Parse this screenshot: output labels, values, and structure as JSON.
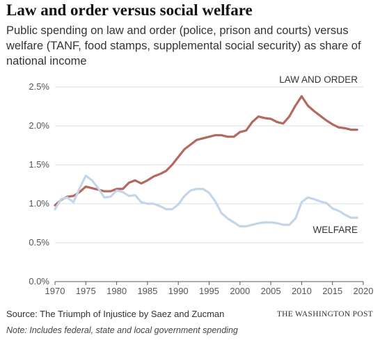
{
  "header": {
    "title": "Law and order versus social welfare",
    "subtitle": "Public spending on law and order (police, prison and courts) versus welfare (TANF, food stamps, supplemental social security) as share of national income"
  },
  "footer": {
    "source": "Source: The Triumph of Injustice by Saez and Zucman",
    "credit": "THE WASHINGTON POST",
    "note": "Note: Includes federal, state and local government spending"
  },
  "colors": {
    "law_and_order": "#b5685e",
    "welfare": "#c3d5e8",
    "grid": "#dddddd",
    "axis": "#555555"
  },
  "chart_data": {
    "type": "line",
    "title": "Law and order versus social welfare",
    "xlabel": "",
    "ylabel": "",
    "xlim": [
      1970,
      2020
    ],
    "ylim": [
      0,
      2.5
    ],
    "x_ticks": [
      1970,
      1975,
      1980,
      1985,
      1990,
      1995,
      2000,
      2005,
      2010,
      2015,
      2020
    ],
    "y_ticks": [
      0,
      0.5,
      1.0,
      1.5,
      2.0,
      2.5
    ],
    "y_tick_labels": [
      "0.0%",
      "0.5%",
      "1.0%",
      "1.5%",
      "2.0%",
      "2.5%"
    ],
    "grid": true,
    "series": [
      {
        "name": "LAW AND ORDER",
        "color": "#b5685e",
        "x": [
          1970,
          1971,
          1972,
          1973,
          1974,
          1975,
          1976,
          1977,
          1978,
          1979,
          1980,
          1981,
          1982,
          1983,
          1984,
          1985,
          1986,
          1987,
          1988,
          1989,
          1990,
          1991,
          1992,
          1993,
          1994,
          1995,
          1996,
          1997,
          1998,
          1999,
          2000,
          2001,
          2002,
          2003,
          2004,
          2005,
          2006,
          2007,
          2008,
          2009,
          2010,
          2011,
          2012,
          2013,
          2014,
          2015,
          2016,
          2017,
          2018,
          2019
        ],
        "values": [
          0.98,
          1.05,
          1.09,
          1.1,
          1.15,
          1.22,
          1.2,
          1.18,
          1.16,
          1.16,
          1.19,
          1.19,
          1.27,
          1.3,
          1.26,
          1.3,
          1.35,
          1.38,
          1.42,
          1.5,
          1.6,
          1.7,
          1.76,
          1.82,
          1.84,
          1.86,
          1.88,
          1.88,
          1.86,
          1.86,
          1.92,
          1.94,
          2.05,
          2.12,
          2.1,
          2.09,
          2.05,
          2.03,
          2.12,
          2.26,
          2.38,
          2.26,
          2.19,
          2.13,
          2.07,
          2.02,
          1.98,
          1.97,
          1.95,
          1.95
        ]
      },
      {
        "name": "WELFARE",
        "color": "#c3d5e8",
        "x": [
          1970,
          1971,
          1972,
          1973,
          1974,
          1975,
          1976,
          1977,
          1978,
          1979,
          1980,
          1981,
          1982,
          1983,
          1984,
          1985,
          1986,
          1987,
          1988,
          1989,
          1990,
          1991,
          1992,
          1993,
          1994,
          1995,
          1996,
          1997,
          1998,
          1999,
          2000,
          2001,
          2002,
          2003,
          2004,
          2005,
          2006,
          2007,
          2008,
          2009,
          2010,
          2011,
          2012,
          2013,
          2014,
          2015,
          2016,
          2017,
          2018,
          2019
        ],
        "values": [
          0.93,
          1.06,
          1.08,
          1.02,
          1.2,
          1.36,
          1.3,
          1.2,
          1.08,
          1.09,
          1.17,
          1.15,
          1.1,
          1.11,
          1.02,
          1.0,
          1.0,
          0.97,
          0.93,
          0.93,
          0.99,
          1.1,
          1.17,
          1.19,
          1.19,
          1.14,
          1.03,
          0.88,
          0.81,
          0.76,
          0.71,
          0.71,
          0.73,
          0.75,
          0.76,
          0.76,
          0.75,
          0.73,
          0.73,
          0.81,
          1.02,
          1.08,
          1.06,
          1.03,
          1.01,
          0.94,
          0.91,
          0.86,
          0.82,
          0.82
        ]
      }
    ],
    "annotations": [
      "LAW AND ORDER",
      "WELFARE"
    ]
  }
}
